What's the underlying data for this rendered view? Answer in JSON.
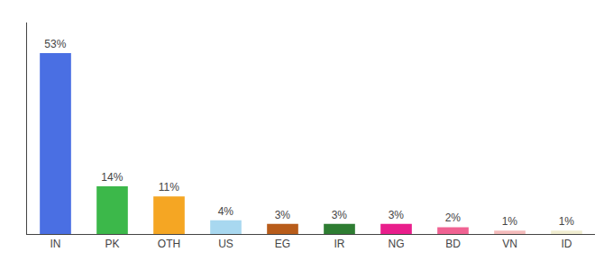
{
  "chart_data": {
    "type": "bar",
    "categories": [
      "IN",
      "PK",
      "OTH",
      "US",
      "EG",
      "IR",
      "NG",
      "BD",
      "VN",
      "ID"
    ],
    "values": [
      53,
      14,
      11,
      4,
      3,
      3,
      3,
      2,
      1,
      1
    ],
    "value_labels": [
      "53%",
      "14%",
      "11%",
      "4%",
      "3%",
      "3%",
      "3%",
      "2%",
      "1%",
      "1%"
    ],
    "colors": [
      "#4A6FE3",
      "#3CB84A",
      "#F5A623",
      "#A8D8F0",
      "#B85C1A",
      "#2E7D32",
      "#E91E8C",
      "#F06292",
      "#F4BBBB",
      "#F0EDD0"
    ],
    "ylim": [
      0,
      62
    ],
    "yticks": [],
    "grid": false,
    "data_labels": true,
    "tick_labels": "x"
  }
}
